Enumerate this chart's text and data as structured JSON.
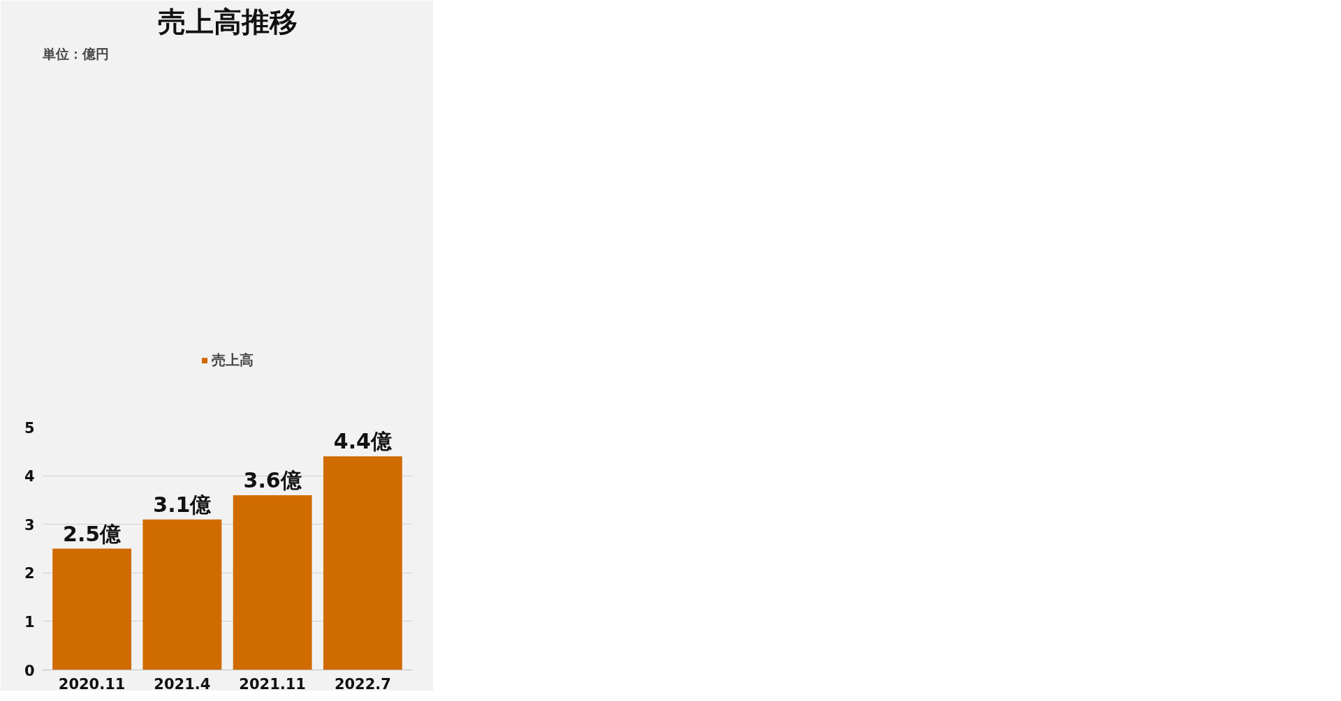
{
  "chart_data": {
    "type": "bar",
    "title": "売上高推移",
    "annotations": [
      "単位：億円"
    ],
    "categories": [
      "2020.11",
      "2021.4",
      "2021.11",
      "2022.7"
    ],
    "series": [
      {
        "name": "売上高",
        "color": "#d06b00",
        "values": [
          2.5,
          3.1,
          3.6,
          4.4
        ]
      }
    ],
    "value_labels": [
      "2.5億",
      "3.1億",
      "3.6億",
      "4.4億"
    ],
    "ylim": [
      0,
      5
    ],
    "yticks": [
      0,
      1,
      2,
      3,
      4,
      5
    ],
    "grid": "y",
    "legend": "top"
  }
}
